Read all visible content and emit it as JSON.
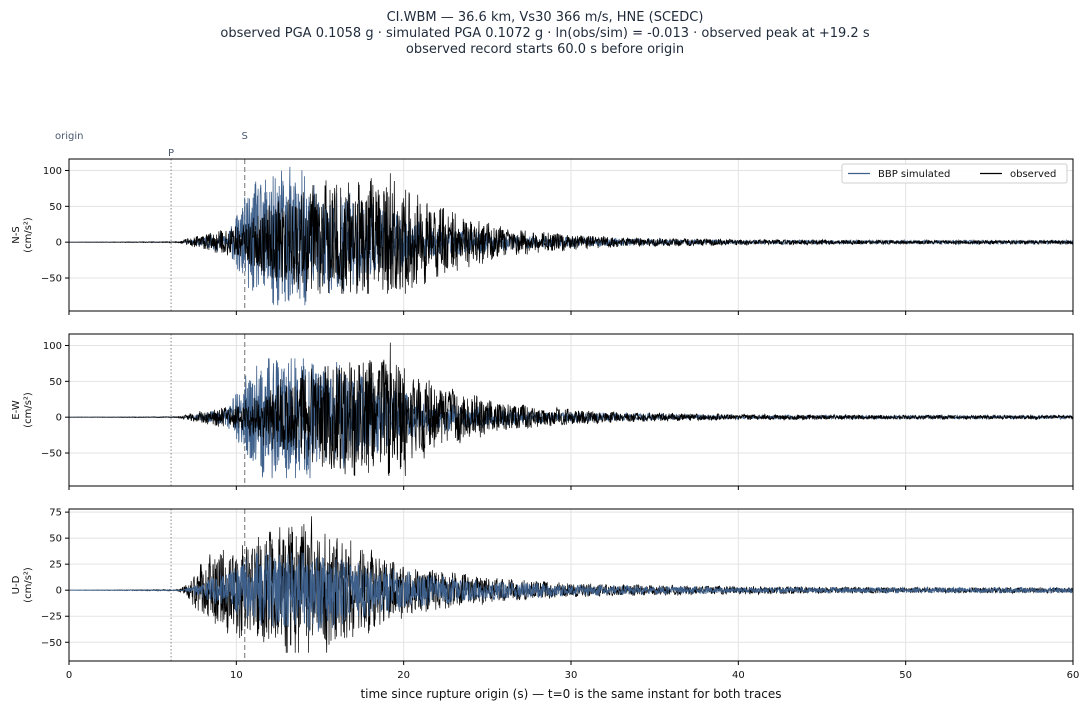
{
  "chart_data": {
    "type": "line",
    "title_lines": [
      "CI.WBM  —  36.6 km, Vs30 366 m/s, HNE (SCEDC)",
      "observed PGA 0.1058 g   ·   simulated PGA 0.1072 g   ·   ln(obs/sim) = -0.013   ·   observed peak at +19.2 s",
      "observed record starts 60.0 s before origin"
    ],
    "xlabel": "time since rupture origin (s)   —   t=0 is the same instant for both traces",
    "xlim": [
      0,
      60
    ],
    "xticks": [
      0,
      10,
      20,
      30,
      40,
      50,
      60
    ],
    "markers": [
      {
        "label": "origin",
        "t": 0
      },
      {
        "label": "P",
        "t": 6.1
      },
      {
        "label": "S",
        "t": 10.5
      }
    ],
    "legend": {
      "placement": "top-right",
      "entries": [
        {
          "name": "BBP simulated",
          "color": "#3d5f8a"
        },
        {
          "name": "observed",
          "color": "#000000"
        }
      ]
    },
    "panels": [
      {
        "label": "N-S",
        "unit": "(cm/s²)",
        "ylim": [
          -96,
          116
        ],
        "yticks": [
          -50,
          0,
          50,
          100
        ],
        "simulated": {
          "peak": 105,
          "peak_t": 13.2,
          "trough": -88,
          "envelope": [
            [
              0,
              0
            ],
            [
              7,
              0.4
            ],
            [
              9.5,
              12
            ],
            [
              10.5,
              45
            ],
            [
              12,
              80
            ],
            [
              14,
              70
            ],
            [
              16,
              55
            ],
            [
              18,
              40
            ],
            [
              20,
              25
            ],
            [
              22,
              15
            ],
            [
              25,
              10
            ],
            [
              28,
              6
            ],
            [
              33,
              4
            ],
            [
              40,
              2
            ],
            [
              50,
              2
            ],
            [
              60,
              2
            ]
          ]
        },
        "observed": {
          "peak": 96,
          "peak_t": 19.2,
          "trough": -72,
          "envelope": [
            [
              0,
              0
            ],
            [
              6.5,
              0.5
            ],
            [
              7.5,
              6
            ],
            [
              9,
              12
            ],
            [
              10.5,
              20
            ],
            [
              12,
              38
            ],
            [
              14,
              55
            ],
            [
              16,
              62
            ],
            [
              19,
              65
            ],
            [
              21,
              45
            ],
            [
              23,
              30
            ],
            [
              26,
              15
            ],
            [
              30,
              8
            ],
            [
              33,
              5
            ],
            [
              40,
              3
            ],
            [
              50,
              2
            ],
            [
              60,
              2
            ]
          ]
        }
      },
      {
        "label": "E-W",
        "unit": "(cm/s²)",
        "ylim": [
          -96,
          116
        ],
        "yticks": [
          -50,
          0,
          50,
          100
        ],
        "simulated": {
          "peak": 82,
          "peak_t": 13.5,
          "trough": -85,
          "envelope": [
            [
              0,
              0
            ],
            [
              7,
              0.4
            ],
            [
              9.5,
              10
            ],
            [
              10.5,
              40
            ],
            [
              12,
              68
            ],
            [
              14,
              62
            ],
            [
              16,
              55
            ],
            [
              18,
              40
            ],
            [
              20,
              24
            ],
            [
              22,
              15
            ],
            [
              25,
              10
            ],
            [
              28,
              6
            ],
            [
              33,
              4
            ],
            [
              40,
              2
            ],
            [
              50,
              2
            ],
            [
              60,
              2
            ]
          ]
        },
        "observed": {
          "peak": 104,
          "peak_t": 19.2,
          "trough": -82,
          "envelope": [
            [
              0,
              0
            ],
            [
              6.5,
              0.5
            ],
            [
              7.5,
              5
            ],
            [
              9,
              10
            ],
            [
              10.5,
              16
            ],
            [
              12,
              32
            ],
            [
              14,
              50
            ],
            [
              16,
              58
            ],
            [
              19,
              62
            ],
            [
              21,
              42
            ],
            [
              23,
              28
            ],
            [
              26,
              14
            ],
            [
              30,
              8
            ],
            [
              33,
              5
            ],
            [
              40,
              3
            ],
            [
              50,
              2
            ],
            [
              60,
              2
            ]
          ]
        }
      },
      {
        "label": "U-D",
        "unit": "(cm/s²)",
        "ylim": [
          -68,
          78
        ],
        "yticks": [
          -50,
          -25,
          0,
          25,
          50,
          75
        ],
        "simulated": {
          "peak": 36,
          "peak_t": 14.0,
          "trough": -40,
          "envelope": [
            [
              0,
              0
            ],
            [
              6.8,
              0.3
            ],
            [
              8,
              6
            ],
            [
              9.5,
              14
            ],
            [
              11,
              24
            ],
            [
              13,
              30
            ],
            [
              15,
              28
            ],
            [
              17,
              22
            ],
            [
              19,
              16
            ],
            [
              22,
              10
            ],
            [
              25,
              7
            ],
            [
              30,
              4
            ],
            [
              40,
              2
            ],
            [
              50,
              2
            ],
            [
              60,
              2
            ]
          ]
        },
        "observed": {
          "peak": 71,
          "peak_t": 14.5,
          "trough": -60,
          "envelope": [
            [
              0,
              0
            ],
            [
              6.5,
              0.5
            ],
            [
              7,
              4
            ],
            [
              8,
              22
            ],
            [
              10,
              32
            ],
            [
              12,
              42
            ],
            [
              14,
              50
            ],
            [
              16,
              40
            ],
            [
              18,
              30
            ],
            [
              20,
              20
            ],
            [
              23,
              12
            ],
            [
              26,
              8
            ],
            [
              30,
              5
            ],
            [
              33,
              4
            ],
            [
              40,
              3
            ],
            [
              50,
              2
            ],
            [
              60,
              2
            ]
          ]
        }
      }
    ]
  }
}
